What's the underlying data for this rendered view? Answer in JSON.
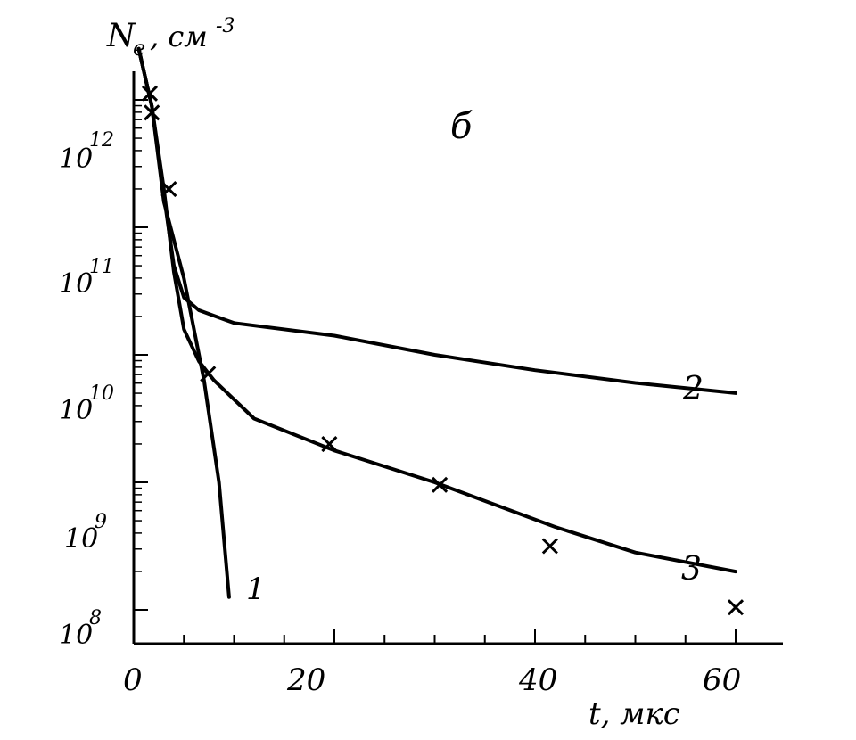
{
  "chart_data": {
    "type": "line",
    "panel_label": "б",
    "ylabel": {
      "main": "N",
      "sub": "e",
      "unit": ", см",
      "exp": "-3"
    },
    "xlabel": "t, мкс",
    "x_ticks": [
      "0",
      "20",
      "40",
      "60"
    ],
    "y_ticks": [
      {
        "base": "10",
        "exp": "8"
      },
      {
        "base": "10",
        "exp": "9"
      },
      {
        "base": "10",
        "exp": "10"
      },
      {
        "base": "10",
        "exp": "11"
      },
      {
        "base": "10",
        "exp": "12"
      }
    ],
    "x_range": [
      0,
      64
    ],
    "y_scale": "log",
    "y_range_log10": [
      7.9,
      12.5
    ],
    "grid": false,
    "legend": "none",
    "series": [
      {
        "name": "1",
        "style": "line",
        "points": [
          [
            0.5,
            12.4
          ],
          [
            1.8,
            11.95
          ],
          [
            3.0,
            11.2
          ],
          [
            5.0,
            10.6
          ],
          [
            7.0,
            9.8
          ],
          [
            8.5,
            9.0
          ],
          [
            9.5,
            8.1
          ]
        ]
      },
      {
        "name": "2",
        "style": "line",
        "points": [
          [
            0.5,
            12.4
          ],
          [
            1.8,
            11.95
          ],
          [
            3.0,
            11.25
          ],
          [
            4.0,
            10.7
          ],
          [
            5.0,
            10.45
          ],
          [
            6.5,
            10.35
          ],
          [
            10,
            10.25
          ],
          [
            20,
            10.15
          ],
          [
            30,
            10.0
          ],
          [
            40,
            9.88
          ],
          [
            50,
            9.78
          ],
          [
            60,
            9.7
          ]
        ]
      },
      {
        "name": "3",
        "style": "line",
        "points": [
          [
            0.5,
            12.4
          ],
          [
            1.8,
            11.95
          ],
          [
            3.0,
            11.3
          ],
          [
            4.0,
            10.65
          ],
          [
            5.0,
            10.2
          ],
          [
            6.5,
            9.95
          ],
          [
            8,
            9.8
          ],
          [
            12,
            9.5
          ],
          [
            20,
            9.25
          ],
          [
            30,
            9.0
          ],
          [
            42,
            8.65
          ],
          [
            50,
            8.45
          ],
          [
            60,
            8.3
          ]
        ]
      }
    ],
    "markers": {
      "style": "cross",
      "points": [
        [
          1.6,
          12.05
        ],
        [
          1.8,
          11.9
        ],
        [
          3.5,
          11.3
        ],
        [
          7.4,
          9.85
        ],
        [
          19.5,
          9.3
        ],
        [
          30.5,
          8.98
        ],
        [
          41.5,
          8.5
        ],
        [
          60,
          8.02
        ]
      ]
    },
    "curve_labels": [
      {
        "text": "1",
        "at": [
          12,
          8.2
        ]
      },
      {
        "text": "2",
        "at": [
          56,
          10.0
        ]
      },
      {
        "text": "3",
        "at": [
          56,
          8.45
        ]
      }
    ]
  }
}
